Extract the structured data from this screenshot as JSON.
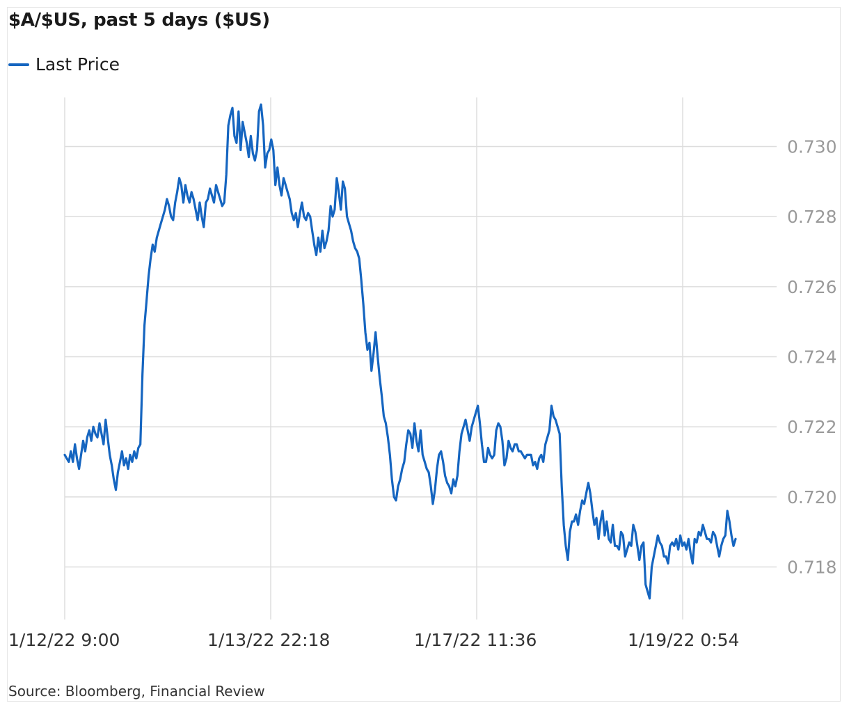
{
  "colors": {
    "series": "#1565c0",
    "grid": "#dddddd",
    "ytick": "#9a9a9a"
  },
  "source": "Source: Bloomberg, Financial Review",
  "chart_data": {
    "type": "line",
    "title": "$A/$US, past 5 days ($US)",
    "xlabel": "",
    "ylabel": "",
    "grid": true,
    "legend_position": "top-left",
    "x_tick_labels": [
      "1/12/22 9:00",
      "1/13/22 22:18",
      "1/17/22 11:36",
      "1/19/22 0:54"
    ],
    "y_tick_labels": [
      "0.718",
      "0.720",
      "0.722",
      "0.724",
      "0.726",
      "0.728",
      "0.730"
    ],
    "y_ticks": [
      0.718,
      0.72,
      0.722,
      0.724,
      0.726,
      0.728,
      0.73
    ],
    "ylim": [
      0.7166,
      0.7314
    ],
    "x_index_range": [
      0,
      344
    ],
    "series": [
      {
        "name": "Last Price",
        "values": [
          0.7212,
          0.7211,
          0.721,
          0.7213,
          0.721,
          0.7215,
          0.7211,
          0.7208,
          0.7212,
          0.7216,
          0.7213,
          0.7217,
          0.7219,
          0.7216,
          0.722,
          0.7218,
          0.7217,
          0.7221,
          0.7218,
          0.7215,
          0.7222,
          0.7217,
          0.7212,
          0.7209,
          0.7205,
          0.7202,
          0.7207,
          0.721,
          0.7213,
          0.7209,
          0.7211,
          0.7208,
          0.7212,
          0.721,
          0.7213,
          0.7211,
          0.7214,
          0.7215,
          0.7235,
          0.7249,
          0.7256,
          0.7263,
          0.7268,
          0.7272,
          0.727,
          0.7274,
          0.7276,
          0.7278,
          0.728,
          0.7282,
          0.7285,
          0.7283,
          0.728,
          0.7279,
          0.7284,
          0.7287,
          0.7291,
          0.7289,
          0.7284,
          0.7289,
          0.7286,
          0.7284,
          0.7287,
          0.7285,
          0.7282,
          0.7279,
          0.7284,
          0.728,
          0.7277,
          0.7284,
          0.7285,
          0.7288,
          0.7286,
          0.7284,
          0.7289,
          0.7287,
          0.7285,
          0.7283,
          0.7284,
          0.7292,
          0.7306,
          0.7309,
          0.7311,
          0.7303,
          0.7301,
          0.731,
          0.7299,
          0.7307,
          0.7304,
          0.7301,
          0.7297,
          0.7303,
          0.7298,
          0.7296,
          0.7299,
          0.731,
          0.7312,
          0.7306,
          0.7294,
          0.7298,
          0.7299,
          0.7302,
          0.7299,
          0.7289,
          0.7294,
          0.7289,
          0.7286,
          0.7291,
          0.7289,
          0.7287,
          0.7285,
          0.7281,
          0.7279,
          0.7281,
          0.7277,
          0.7281,
          0.7284,
          0.728,
          0.7279,
          0.7281,
          0.728,
          0.7276,
          0.7272,
          0.7269,
          0.7274,
          0.727,
          0.7276,
          0.7271,
          0.7273,
          0.7276,
          0.7283,
          0.728,
          0.7282,
          0.7291,
          0.7287,
          0.7282,
          0.729,
          0.7288,
          0.728,
          0.7278,
          0.7276,
          0.7273,
          0.7271,
          0.727,
          0.7268,
          0.7262,
          0.7255,
          0.7247,
          0.7242,
          0.7244,
          0.7236,
          0.7241,
          0.7247,
          0.724,
          0.7234,
          0.7229,
          0.7223,
          0.7221,
          0.7217,
          0.7212,
          0.7205,
          0.72,
          0.7199,
          0.7203,
          0.7205,
          0.7208,
          0.721,
          0.7215,
          0.7219,
          0.7218,
          0.7214,
          0.7221,
          0.7216,
          0.7213,
          0.7219,
          0.7212,
          0.721,
          0.7208,
          0.7207,
          0.7203,
          0.7198,
          0.7202,
          0.7208,
          0.7212,
          0.7213,
          0.721,
          0.7206,
          0.7204,
          0.7203,
          0.7201,
          0.7205,
          0.7203,
          0.7206,
          0.7213,
          0.7218,
          0.722,
          0.7222,
          0.7219,
          0.7216,
          0.722,
          0.7222,
          0.7224,
          0.7226,
          0.7221,
          0.7215,
          0.721,
          0.721,
          0.7214,
          0.7212,
          0.7211,
          0.7212,
          0.7219,
          0.7221,
          0.722,
          0.7216,
          0.7209,
          0.7211,
          0.7216,
          0.7214,
          0.7213,
          0.7215,
          0.7215,
          0.7213,
          0.7213,
          0.7212,
          0.7211,
          0.7212,
          0.7212,
          0.7212,
          0.7209,
          0.721,
          0.7208,
          0.7211,
          0.7212,
          0.721,
          0.7215,
          0.7217,
          0.7219,
          0.7226,
          0.7223,
          0.7222,
          0.722,
          0.7218,
          0.7203,
          0.7192,
          0.7186,
          0.7182,
          0.719,
          0.7193,
          0.7193,
          0.7195,
          0.7192,
          0.7196,
          0.7199,
          0.7198,
          0.7201,
          0.7204,
          0.7201,
          0.7196,
          0.7192,
          0.7194,
          0.7188,
          0.7193,
          0.7196,
          0.7189,
          0.7193,
          0.7188,
          0.7187,
          0.7192,
          0.7186,
          0.7186,
          0.7185,
          0.719,
          0.7189,
          0.7183,
          0.7185,
          0.7187,
          0.7186,
          0.7192,
          0.719,
          0.7186,
          0.7182,
          0.7186,
          0.7187,
          0.7175,
          0.7173,
          0.7171,
          0.718,
          0.7183,
          0.7186,
          0.7189,
          0.7187,
          0.7186,
          0.7183,
          0.7183,
          0.7181,
          0.7186,
          0.7187,
          0.7186,
          0.7188,
          0.7185,
          0.7189,
          0.7186,
          0.7187,
          0.7185,
          0.7188,
          0.7184,
          0.7181,
          0.7188,
          0.7187,
          0.719,
          0.7189,
          0.7192,
          0.719,
          0.7188,
          0.7188,
          0.7187,
          0.719,
          0.7189,
          0.7186,
          0.7183,
          0.7186,
          0.7188,
          0.7189,
          0.7196,
          0.7193,
          0.7189,
          0.7186,
          0.7188
        ]
      }
    ]
  }
}
